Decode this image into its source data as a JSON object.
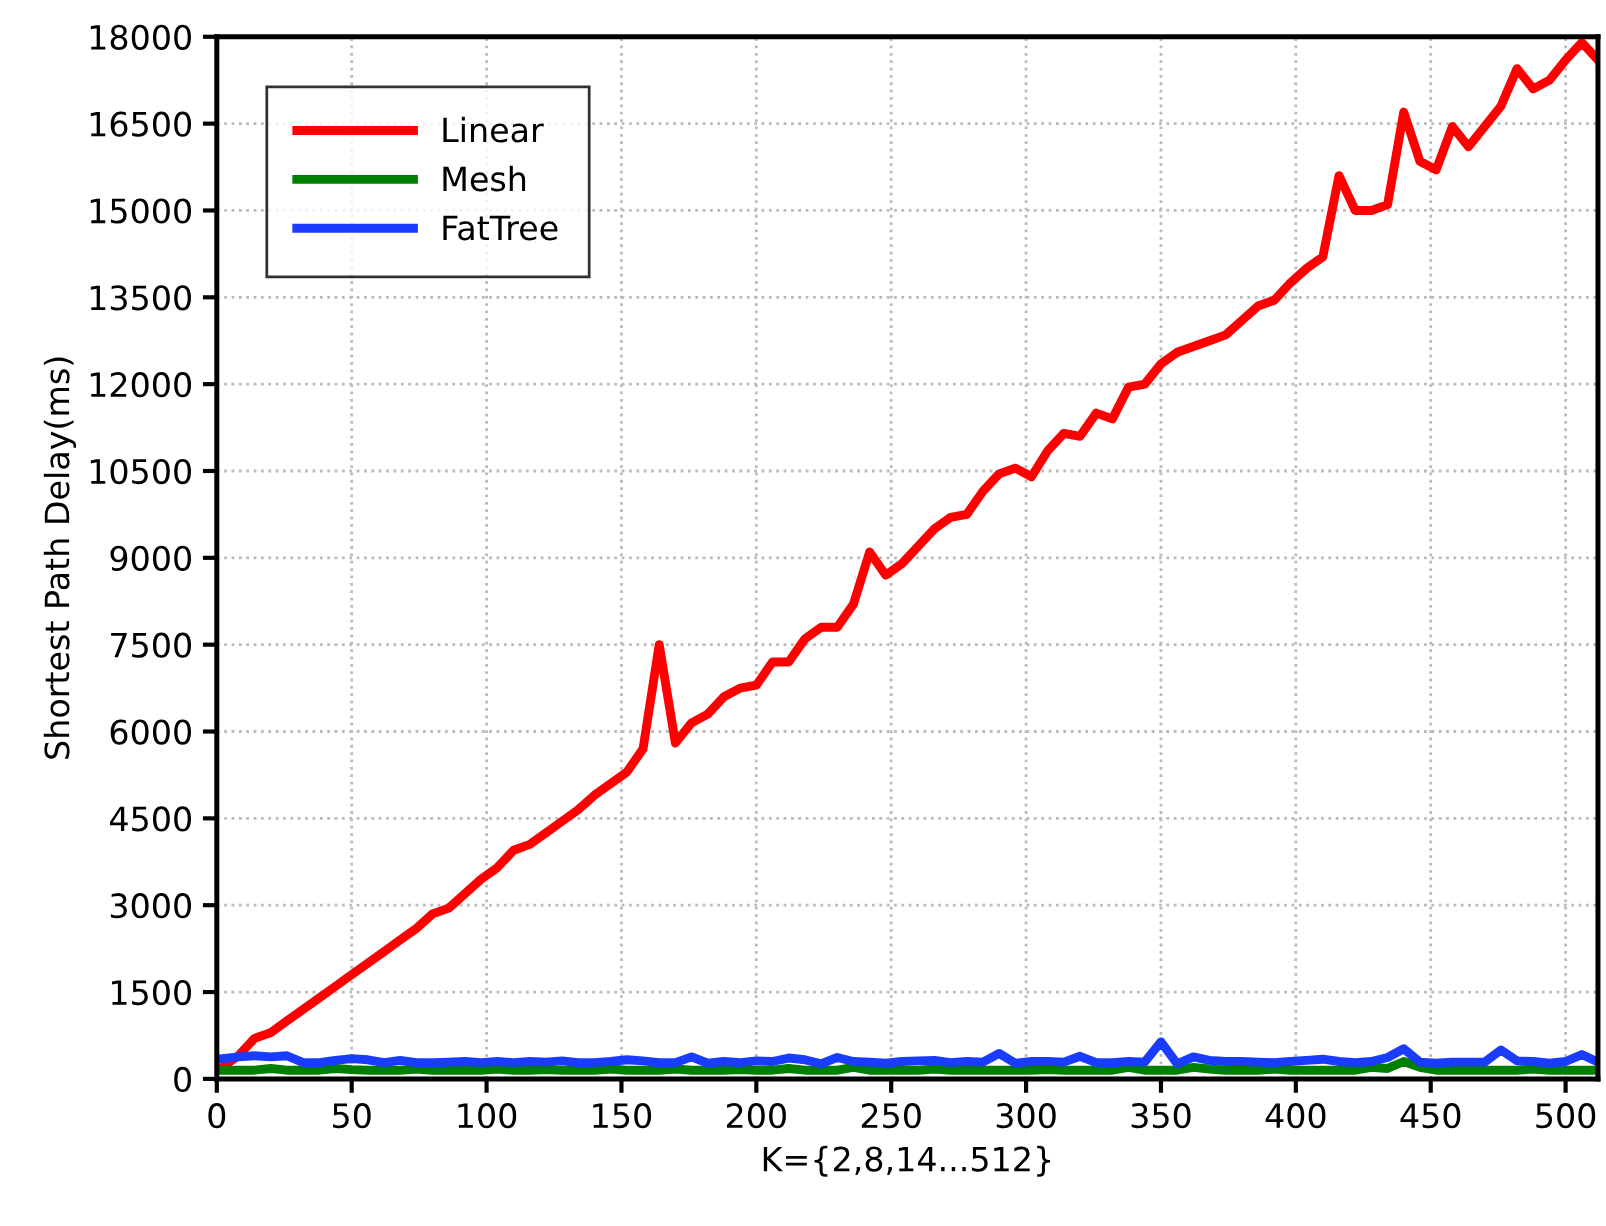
{
  "chart_data": {
    "type": "line",
    "xlabel": "K={2,8,14...512}",
    "ylabel": "Shortest Path Delay(ms)",
    "x": [
      2,
      8,
      14,
      20,
      26,
      32,
      38,
      44,
      50,
      56,
      62,
      68,
      74,
      80,
      86,
      92,
      98,
      104,
      110,
      116,
      122,
      128,
      134,
      140,
      146,
      152,
      158,
      164,
      170,
      176,
      182,
      188,
      194,
      200,
      206,
      212,
      218,
      224,
      230,
      236,
      242,
      248,
      254,
      260,
      266,
      272,
      278,
      284,
      290,
      296,
      302,
      308,
      314,
      320,
      326,
      332,
      338,
      344,
      350,
      356,
      362,
      368,
      374,
      380,
      386,
      392,
      398,
      404,
      410,
      416,
      422,
      428,
      434,
      440,
      446,
      452,
      458,
      464,
      470,
      476,
      482,
      488,
      494,
      500,
      506,
      512
    ],
    "series": [
      {
        "name": "Linear",
        "color": "#ff0000",
        "values": [
          200,
          400,
          700,
          800,
          1000,
          1200,
          1400,
          1600,
          1800,
          2000,
          2200,
          2400,
          2600,
          2850,
          2950,
          3200,
          3450,
          3650,
          3950,
          4050,
          4250,
          4450,
          4650,
          4900,
          5100,
          5300,
          5700,
          7500,
          5800,
          6150,
          6300,
          6600,
          6750,
          6800,
          7200,
          7200,
          7600,
          7800,
          7800,
          8200,
          9100,
          8700,
          8900,
          9200,
          9500,
          9700,
          9750,
          10150,
          10450,
          10550,
          10400,
          10850,
          11150,
          11100,
          11500,
          11400,
          11950,
          12000,
          12350,
          12550,
          12650,
          12750,
          12850,
          13100,
          13350,
          13450,
          13750,
          14000,
          14200,
          15600,
          15000,
          15000,
          15100,
          16700,
          15850,
          15700,
          16450,
          16100,
          16450,
          16800,
          17450,
          17100,
          17250,
          17600,
          17900,
          17600
        ]
      },
      {
        "name": "Mesh",
        "color": "#008000",
        "values": [
          150,
          150,
          150,
          180,
          150,
          150,
          150,
          180,
          160,
          150,
          150,
          150,
          170,
          150,
          150,
          150,
          150,
          170,
          150,
          150,
          160,
          150,
          150,
          150,
          170,
          150,
          150,
          150,
          170,
          150,
          150,
          150,
          160,
          150,
          150,
          180,
          150,
          150,
          150,
          200,
          150,
          150,
          150,
          150,
          170,
          150,
          150,
          150,
          150,
          150,
          150,
          160,
          150,
          150,
          150,
          150,
          200,
          150,
          150,
          150,
          200,
          170,
          150,
          150,
          150,
          170,
          150,
          150,
          150,
          150,
          150,
          200,
          180,
          300,
          200,
          150,
          150,
          150,
          150,
          150,
          150,
          170,
          150,
          150,
          150,
          150
        ]
      },
      {
        "name": "FatTree",
        "color": "#1a3cff",
        "values": [
          350,
          380,
          400,
          380,
          400,
          280,
          280,
          320,
          350,
          330,
          280,
          320,
          280,
          280,
          290,
          300,
          280,
          300,
          280,
          300,
          290,
          310,
          280,
          280,
          300,
          330,
          310,
          280,
          280,
          380,
          270,
          300,
          280,
          310,
          300,
          360,
          330,
          260,
          370,
          300,
          290,
          270,
          300,
          310,
          320,
          280,
          300,
          290,
          440,
          270,
          300,
          300,
          290,
          390,
          280,
          280,
          300,
          290,
          640,
          260,
          380,
          320,
          300,
          300,
          290,
          280,
          300,
          320,
          340,
          300,
          280,
          300,
          370,
          520,
          290,
          270,
          290,
          290,
          290,
          500,
          310,
          300,
          270,
          300,
          420,
          290
        ]
      }
    ],
    "xlim": [
      0,
      512
    ],
    "xticks": [
      0,
      50,
      100,
      150,
      200,
      250,
      300,
      350,
      400,
      450,
      500
    ],
    "ylim": [
      0,
      18000
    ],
    "yticks": [
      0,
      1500,
      3000,
      4500,
      6000,
      7500,
      9000,
      10500,
      12000,
      13500,
      15000,
      16500,
      18000
    ],
    "grid": true,
    "legend": "top left",
    "marker": "none",
    "line_style": "solid"
  }
}
